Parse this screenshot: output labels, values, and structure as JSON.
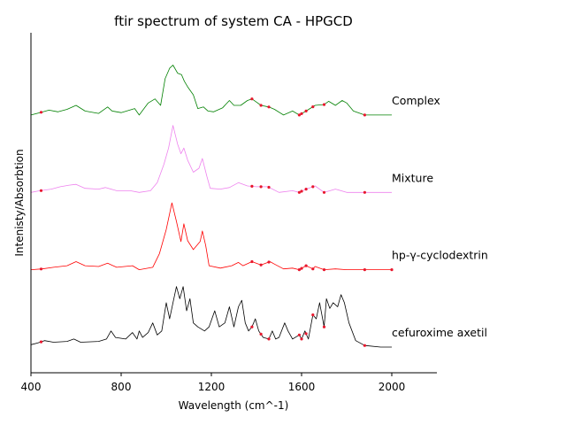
{
  "chart_data": {
    "type": "line",
    "title": "ftir spectrum of system CA - HPGCD",
    "xlabel": "Wavelength (cm^-1)",
    "ylabel": "Intenisty/Absorbtion",
    "xlim": [
      400,
      2200
    ],
    "ylim": [
      0,
      4
    ],
    "xticks": [
      400,
      800,
      1200,
      1600,
      2000
    ],
    "y_ticks_shown": false,
    "legend": "none (series named by text labels at right)",
    "marker_x": [
      445,
      1380,
      1420,
      1455,
      1590,
      1600,
      1620,
      1650,
      1700,
      1880,
      2000
    ],
    "series": [
      {
        "name": "cefuroxime axetil",
        "color": "#000000",
        "offset": 0.22,
        "marker_x": [
          445,
          1380,
          1420,
          1455,
          1590,
          1600,
          1620,
          1650,
          1700,
          1880
        ],
        "points": [
          [
            400,
            0.03
          ],
          [
            430,
            0.05
          ],
          [
            460,
            0.08
          ],
          [
            500,
            0.06
          ],
          [
            560,
            0.07
          ],
          [
            590,
            0.1
          ],
          [
            620,
            0.06
          ],
          [
            700,
            0.07
          ],
          [
            735,
            0.1
          ],
          [
            755,
            0.2
          ],
          [
            775,
            0.12
          ],
          [
            820,
            0.1
          ],
          [
            850,
            0.18
          ],
          [
            870,
            0.1
          ],
          [
            880,
            0.2
          ],
          [
            895,
            0.12
          ],
          [
            920,
            0.18
          ],
          [
            940,
            0.3
          ],
          [
            960,
            0.15
          ],
          [
            980,
            0.2
          ],
          [
            1000,
            0.55
          ],
          [
            1015,
            0.35
          ],
          [
            1030,
            0.55
          ],
          [
            1045,
            0.75
          ],
          [
            1060,
            0.6
          ],
          [
            1075,
            0.75
          ],
          [
            1090,
            0.45
          ],
          [
            1105,
            0.6
          ],
          [
            1120,
            0.3
          ],
          [
            1140,
            0.25
          ],
          [
            1170,
            0.2
          ],
          [
            1190,
            0.25
          ],
          [
            1215,
            0.45
          ],
          [
            1235,
            0.25
          ],
          [
            1260,
            0.3
          ],
          [
            1280,
            0.5
          ],
          [
            1300,
            0.25
          ],
          [
            1320,
            0.5
          ],
          [
            1335,
            0.58
          ],
          [
            1350,
            0.3
          ],
          [
            1365,
            0.2
          ],
          [
            1380,
            0.25
          ],
          [
            1395,
            0.35
          ],
          [
            1410,
            0.2
          ],
          [
            1430,
            0.12
          ],
          [
            1455,
            0.1
          ],
          [
            1470,
            0.2
          ],
          [
            1485,
            0.1
          ],
          [
            1500,
            0.12
          ],
          [
            1525,
            0.3
          ],
          [
            1540,
            0.2
          ],
          [
            1560,
            0.1
          ],
          [
            1590,
            0.15
          ],
          [
            1600,
            0.1
          ],
          [
            1615,
            0.2
          ],
          [
            1630,
            0.1
          ],
          [
            1650,
            0.4
          ],
          [
            1665,
            0.35
          ],
          [
            1680,
            0.55
          ],
          [
            1700,
            0.25
          ],
          [
            1710,
            0.6
          ],
          [
            1725,
            0.48
          ],
          [
            1740,
            0.55
          ],
          [
            1760,
            0.5
          ],
          [
            1775,
            0.65
          ],
          [
            1790,
            0.55
          ],
          [
            1810,
            0.3
          ],
          [
            1840,
            0.08
          ],
          [
            1880,
            0.02
          ],
          [
            1950,
            0.0
          ],
          [
            2000,
            0.0
          ]
        ]
      },
      {
        "name": "hp-γ-cyclodextrin",
        "color": "#ff0000",
        "offset": 1.18,
        "marker_x": [
          445,
          1380,
          1420,
          1455,
          1590,
          1600,
          1620,
          1650,
          1700,
          1880,
          2000
        ],
        "points": [
          [
            400,
            0.0
          ],
          [
            450,
            0.01
          ],
          [
            500,
            0.03
          ],
          [
            560,
            0.05
          ],
          [
            600,
            0.1
          ],
          [
            640,
            0.05
          ],
          [
            700,
            0.04
          ],
          [
            740,
            0.08
          ],
          [
            780,
            0.03
          ],
          [
            850,
            0.05
          ],
          [
            880,
            0.0
          ],
          [
            940,
            0.03
          ],
          [
            970,
            0.2
          ],
          [
            1000,
            0.5
          ],
          [
            1025,
            0.83
          ],
          [
            1045,
            0.6
          ],
          [
            1065,
            0.35
          ],
          [
            1078,
            0.57
          ],
          [
            1095,
            0.36
          ],
          [
            1120,
            0.25
          ],
          [
            1150,
            0.35
          ],
          [
            1160,
            0.48
          ],
          [
            1175,
            0.3
          ],
          [
            1190,
            0.05
          ],
          [
            1240,
            0.02
          ],
          [
            1290,
            0.05
          ],
          [
            1320,
            0.09
          ],
          [
            1340,
            0.05
          ],
          [
            1380,
            0.1
          ],
          [
            1420,
            0.06
          ],
          [
            1460,
            0.1
          ],
          [
            1480,
            0.07
          ],
          [
            1520,
            0.01
          ],
          [
            1560,
            0.02
          ],
          [
            1590,
            0.0
          ],
          [
            1620,
            0.05
          ],
          [
            1650,
            0.01
          ],
          [
            1660,
            0.04
          ],
          [
            1700,
            0.0
          ],
          [
            1750,
            0.01
          ],
          [
            1800,
            0.0
          ],
          [
            1880,
            0.0
          ],
          [
            2000,
            0.0
          ]
        ]
      },
      {
        "name": "Mixture",
        "color": "#ee82ee",
        "offset": 2.14,
        "marker_x": [
          445,
          1380,
          1420,
          1455,
          1590,
          1600,
          1620,
          1650,
          1700,
          1880
        ],
        "points": [
          [
            400,
            0.0
          ],
          [
            440,
            0.02
          ],
          [
            490,
            0.04
          ],
          [
            530,
            0.07
          ],
          [
            570,
            0.09
          ],
          [
            600,
            0.1
          ],
          [
            640,
            0.05
          ],
          [
            700,
            0.04
          ],
          [
            730,
            0.06
          ],
          [
            780,
            0.02
          ],
          [
            840,
            0.02
          ],
          [
            880,
            0.0
          ],
          [
            930,
            0.02
          ],
          [
            960,
            0.12
          ],
          [
            990,
            0.35
          ],
          [
            1010,
            0.55
          ],
          [
            1030,
            0.83
          ],
          [
            1050,
            0.6
          ],
          [
            1065,
            0.48
          ],
          [
            1078,
            0.55
          ],
          [
            1095,
            0.4
          ],
          [
            1120,
            0.25
          ],
          [
            1145,
            0.3
          ],
          [
            1160,
            0.42
          ],
          [
            1180,
            0.2
          ],
          [
            1195,
            0.05
          ],
          [
            1240,
            0.04
          ],
          [
            1280,
            0.06
          ],
          [
            1320,
            0.12
          ],
          [
            1360,
            0.08
          ],
          [
            1400,
            0.07
          ],
          [
            1450,
            0.07
          ],
          [
            1500,
            0.0
          ],
          [
            1560,
            0.02
          ],
          [
            1590,
            0.0
          ],
          [
            1620,
            0.04
          ],
          [
            1660,
            0.08
          ],
          [
            1700,
            0.0
          ],
          [
            1750,
            0.04
          ],
          [
            1800,
            0.0
          ],
          [
            1880,
            0.0
          ],
          [
            2000,
            0.0
          ]
        ]
      },
      {
        "name": "Complex",
        "color": "#008000",
        "offset": 3.1,
        "marker_x": [
          445,
          1380,
          1420,
          1455,
          1590,
          1600,
          1620,
          1650,
          1700,
          1880
        ],
        "points": [
          [
            400,
            0.0
          ],
          [
            440,
            0.03
          ],
          [
            480,
            0.06
          ],
          [
            520,
            0.04
          ],
          [
            560,
            0.07
          ],
          [
            600,
            0.12
          ],
          [
            640,
            0.05
          ],
          [
            700,
            0.02
          ],
          [
            740,
            0.1
          ],
          [
            760,
            0.05
          ],
          [
            800,
            0.03
          ],
          [
            860,
            0.08
          ],
          [
            880,
            0.0
          ],
          [
            920,
            0.15
          ],
          [
            950,
            0.2
          ],
          [
            975,
            0.12
          ],
          [
            995,
            0.45
          ],
          [
            1015,
            0.58
          ],
          [
            1030,
            0.62
          ],
          [
            1050,
            0.52
          ],
          [
            1068,
            0.5
          ],
          [
            1080,
            0.42
          ],
          [
            1095,
            0.35
          ],
          [
            1120,
            0.25
          ],
          [
            1140,
            0.08
          ],
          [
            1165,
            0.1
          ],
          [
            1185,
            0.05
          ],
          [
            1210,
            0.04
          ],
          [
            1250,
            0.09
          ],
          [
            1280,
            0.18
          ],
          [
            1300,
            0.12
          ],
          [
            1330,
            0.12
          ],
          [
            1360,
            0.18
          ],
          [
            1380,
            0.2
          ],
          [
            1400,
            0.16
          ],
          [
            1420,
            0.12
          ],
          [
            1455,
            0.1
          ],
          [
            1480,
            0.07
          ],
          [
            1520,
            0.0
          ],
          [
            1560,
            0.05
          ],
          [
            1590,
            0.0
          ],
          [
            1620,
            0.05
          ],
          [
            1660,
            0.12
          ],
          [
            1700,
            0.13
          ],
          [
            1720,
            0.17
          ],
          [
            1750,
            0.12
          ],
          [
            1780,
            0.18
          ],
          [
            1800,
            0.15
          ],
          [
            1830,
            0.05
          ],
          [
            1880,
            0.0
          ],
          [
            2000,
            0.0
          ]
        ]
      }
    ]
  }
}
